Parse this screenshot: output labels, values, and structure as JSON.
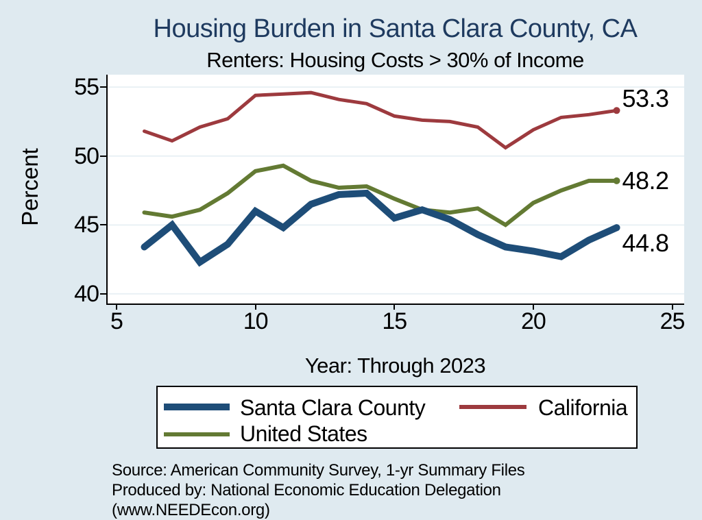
{
  "header": {
    "title": "Housing Burden in Santa Clara County, CA",
    "subtitle": "Renters: Housing Costs > 30% of Income"
  },
  "chart_data": {
    "type": "line",
    "title": "Housing Burden in Santa Clara County, CA",
    "subtitle": "Renters: Housing Costs > 30% of Income",
    "xlabel": "Year: Through 2023",
    "ylabel": "Percent",
    "x": [
      6,
      7,
      8,
      9,
      10,
      11,
      12,
      13,
      14,
      15,
      16,
      17,
      18,
      19,
      20,
      21,
      22,
      23
    ],
    "series": [
      {
        "name": "California",
        "color": "#9d3a3e",
        "stroke_width": 5,
        "end_label": "53.3",
        "end_label_dy": -17,
        "values": [
          51.8,
          51.1,
          52.1,
          52.7,
          54.4,
          54.5,
          54.6,
          54.1,
          53.8,
          52.9,
          52.6,
          52.5,
          52.1,
          50.6,
          51.9,
          52.8,
          53.0,
          53.3
        ]
      },
      {
        "name": "United States",
        "color": "#637a33",
        "stroke_width": 6,
        "end_label": "48.2",
        "end_label_dy": 0,
        "values": [
          45.9,
          45.6,
          46.1,
          47.3,
          48.9,
          49.3,
          48.2,
          47.7,
          47.8,
          46.9,
          46.1,
          45.9,
          46.2,
          45.0,
          46.6,
          47.5,
          48.2,
          48.2
        ]
      },
      {
        "name": "Santa Clara County",
        "color": "#1e4d78",
        "stroke_width": 10,
        "end_label": "44.8",
        "end_label_dy": 23,
        "values": [
          43.4,
          45.0,
          42.3,
          43.6,
          46.0,
          44.8,
          46.5,
          47.2,
          47.3,
          45.5,
          46.1,
          45.4,
          44.3,
          43.4,
          43.1,
          42.7,
          43.9,
          44.8
        ]
      }
    ],
    "xticks": [
      5,
      10,
      15,
      20,
      25
    ],
    "yticks": [
      40,
      45,
      50,
      55
    ],
    "xlim": [
      4.68,
      25.43
    ],
    "ylim": [
      39.3,
      55.9
    ],
    "grid": "horizontal-only",
    "legend_position": "bottom"
  },
  "legend": {
    "items": [
      {
        "label": "Santa Clara County",
        "color": "#1e4d78",
        "thickness": 10
      },
      {
        "label": "California",
        "color": "#9d3a3e",
        "thickness": 6
      },
      {
        "label": "United States",
        "color": "#637a33",
        "thickness": 6
      }
    ]
  },
  "footer": {
    "line1": "Source: American Community Survey, 1-yr Summary Files",
    "line2": "Produced by: National Economic Education Delegation (www.NEEDEcon.org)"
  },
  "colors": {
    "background": "#dfeaf0",
    "plot_background": "#ffffff",
    "gridline": "#e9f1f5",
    "axis": "#000000",
    "title_text": "#1e3a5f",
    "label_text": "#000000"
  }
}
